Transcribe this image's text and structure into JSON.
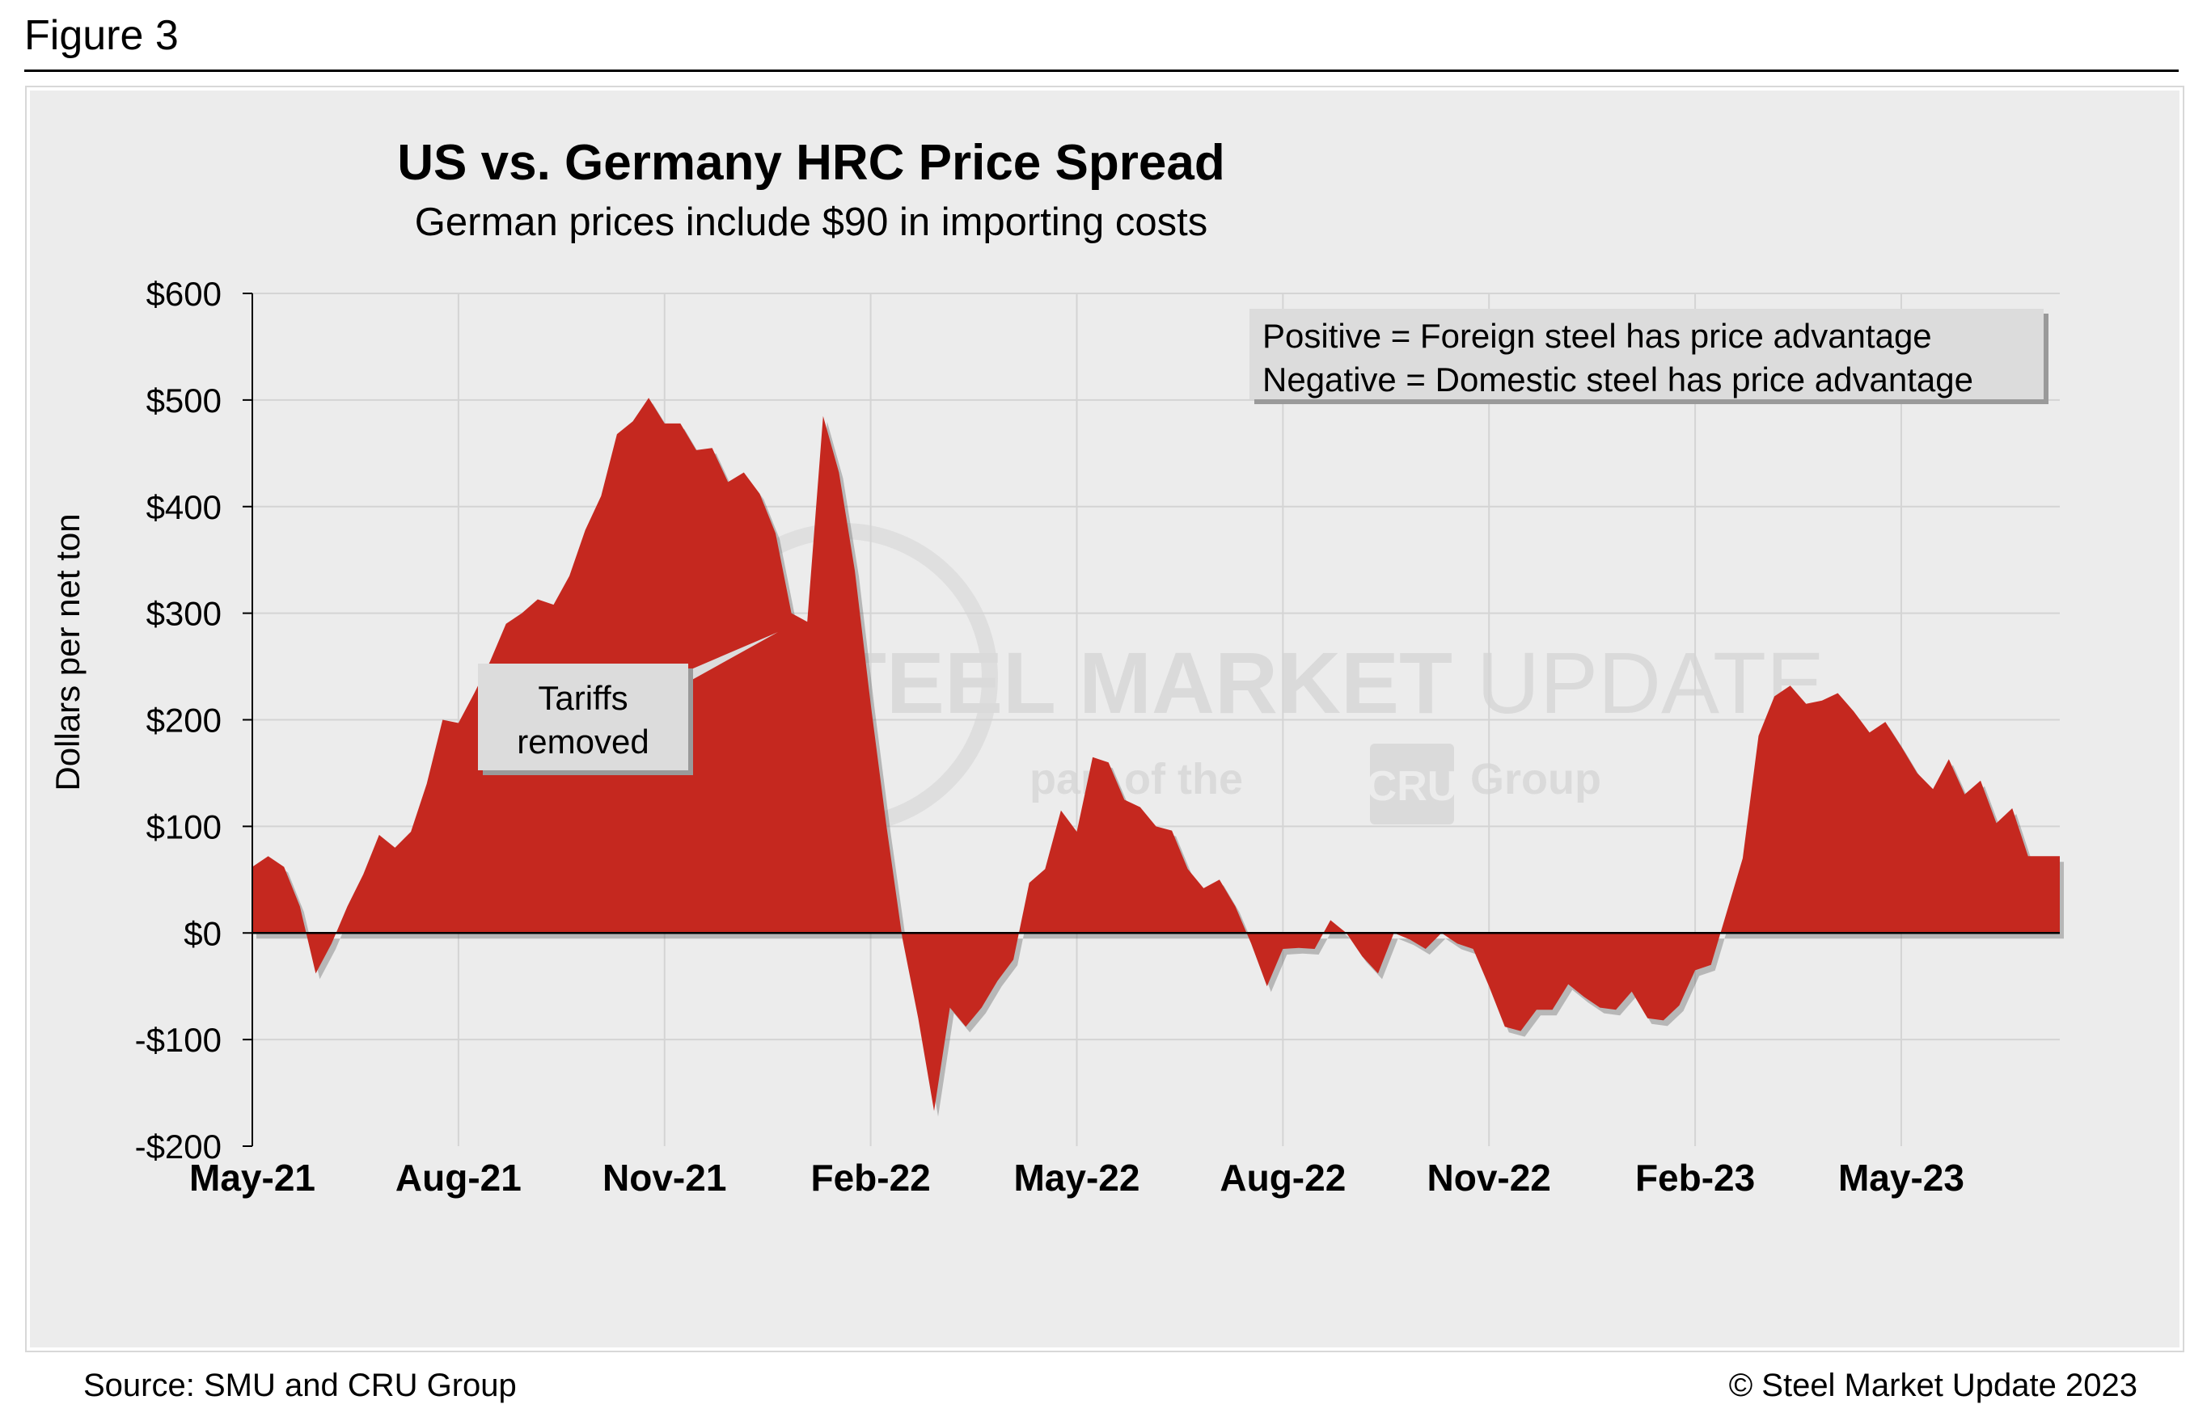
{
  "figure_label": "Figure 3",
  "source": "Source: SMU and CRU Group",
  "copyright": "© Steel Market Update 2023",
  "watermark": {
    "line1_bold": "STEEL MARKET",
    "line1_light": "UPDATE",
    "line2": "part of the",
    "line2_badge": "CRU",
    "line2_end": "Group"
  },
  "colors": {
    "fill": "#c5281f",
    "panel": "#ececec",
    "grid": "#d4d4d4"
  },
  "chart_data": {
    "type": "area",
    "title": "US vs. Germany HRC Price Spread",
    "subtitle": "German prices include $90 in importing costs",
    "ylabel": "Dollars per net ton",
    "xlabel": "",
    "ylim": [
      -200,
      600
    ],
    "yticks": [
      -200,
      -100,
      0,
      100,
      200,
      300,
      400,
      500,
      600
    ],
    "ytick_labels": [
      "-$200",
      "-$100",
      "$0",
      "$100",
      "$200",
      "$300",
      "$400",
      "$500",
      "$600"
    ],
    "xlim_index": [
      0,
      114
    ],
    "xticks": [
      {
        "label": "May-21",
        "index": 0
      },
      {
        "label": "Aug-21",
        "index": 13
      },
      {
        "label": "Nov-21",
        "index": 26
      },
      {
        "label": "Feb-22",
        "index": 39
      },
      {
        "label": "May-22",
        "index": 52
      },
      {
        "label": "Aug-22",
        "index": 65
      },
      {
        "label": "Nov-22",
        "index": 78
      },
      {
        "label": "Feb-23",
        "index": 91
      },
      {
        "label": "May-23",
        "index": 104
      }
    ],
    "legend_box": {
      "lines": [
        "Positive = Foreign steel has price advantage",
        "Negative = Domestic steel has price advantage"
      ],
      "placement": "top-right"
    },
    "annotation": {
      "lines": [
        "Tariffs",
        "removed"
      ],
      "points_to_index": 34
    },
    "series": [
      {
        "name": "US minus Germany HRC spread (weekly)",
        "values": [
          62,
          72,
          62,
          25,
          -38,
          -10,
          25,
          55,
          92,
          80,
          95,
          140,
          200,
          197,
          225,
          255,
          290,
          300,
          313,
          308,
          335,
          378,
          410,
          468,
          480,
          502,
          478,
          478,
          453,
          455,
          423,
          432,
          412,
          375,
          300,
          292,
          485,
          432,
          340,
          215,
          100,
          -5,
          -80,
          -167,
          -70,
          -88,
          -70,
          -45,
          -25,
          47,
          60,
          115,
          95,
          165,
          160,
          125,
          118,
          100,
          96,
          60,
          42,
          50,
          25,
          -10,
          -50,
          -15,
          -14,
          -15,
          12,
          0,
          -22,
          -38,
          0,
          -6,
          -15,
          0,
          -10,
          -15,
          -50,
          -88,
          -92,
          -72,
          -72,
          -48,
          -60,
          -70,
          -72,
          -55,
          -80,
          -82,
          -68,
          -35,
          -30,
          20,
          70,
          185,
          222,
          232,
          215,
          218,
          225,
          208,
          188,
          198,
          175,
          150,
          135,
          163,
          130,
          143,
          103,
          117,
          72,
          72,
          72
        ]
      }
    ]
  }
}
